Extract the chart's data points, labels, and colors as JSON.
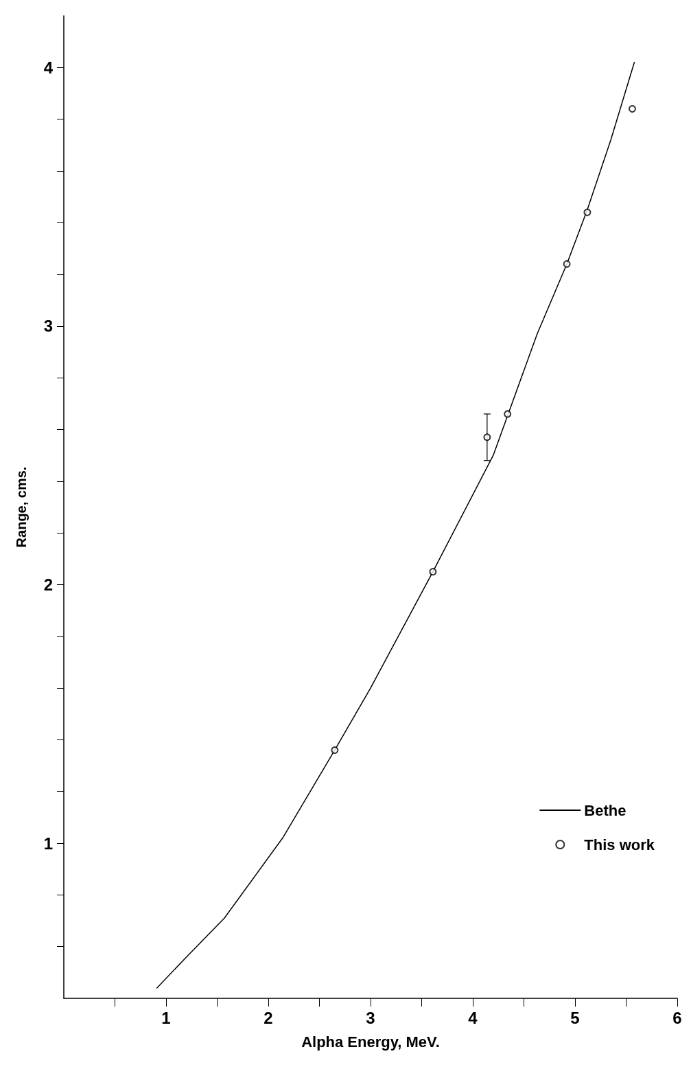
{
  "chart_data": {
    "type": "scatter",
    "xlabel": "Alpha Energy, MeV.",
    "ylabel": "Range, cms.",
    "xlim": [
      0,
      6
    ],
    "ylim": [
      0.4,
      4.2
    ],
    "xticks": [
      {
        "value": 0.5,
        "label": null
      },
      1,
      {
        "value": 1.5,
        "label": null
      },
      2,
      {
        "value": 2.5,
        "label": null
      },
      3,
      {
        "value": 3.5,
        "label": null
      },
      4,
      {
        "value": 4.5,
        "label": null
      },
      5,
      {
        "value": 5.5,
        "label": null
      },
      6
    ],
    "yticks": [
      {
        "value": 0.6,
        "label": null
      },
      {
        "value": 0.8,
        "label": null
      },
      1,
      {
        "value": 1.2,
        "label": null
      },
      {
        "value": 1.4,
        "label": null
      },
      {
        "value": 1.6,
        "label": null
      },
      {
        "value": 1.8,
        "label": null
      },
      2,
      {
        "value": 2.2,
        "label": null
      },
      {
        "value": 2.4,
        "label": null
      },
      {
        "value": 2.6,
        "label": null
      },
      {
        "value": 2.8,
        "label": null
      },
      3,
      {
        "value": 3.2,
        "label": null
      },
      {
        "value": 3.4,
        "label": null
      },
      {
        "value": 3.6,
        "label": null
      },
      {
        "value": 3.8,
        "label": null
      },
      4
    ],
    "grid": false,
    "legend": "bottom right",
    "series": [
      {
        "name": "Bethe",
        "type": "line",
        "color": "#000000",
        "marker": "none",
        "line_style": "solid",
        "x": [
          0.91,
          1.2,
          1.57,
          2.14,
          2.65,
          3.0,
          3.61,
          4.2,
          4.63,
          4.92,
          5.12,
          5.35,
          5.58
        ],
        "values": [
          0.44,
          0.56,
          0.71,
          1.02,
          1.36,
          1.6,
          2.05,
          2.5,
          2.97,
          3.24,
          3.45,
          3.72,
          4.02
        ]
      },
      {
        "name": "This work",
        "color": "#000000",
        "marker": "circle",
        "x": [
          2.65,
          3.61,
          4.14,
          4.34,
          4.92,
          5.12,
          5.56
        ],
        "values": [
          1.36,
          2.05,
          2.57,
          2.66,
          3.24,
          3.44,
          3.84
        ],
        "errors": [
          null,
          null,
          0.09,
          null,
          null,
          null,
          null
        ]
      }
    ]
  }
}
